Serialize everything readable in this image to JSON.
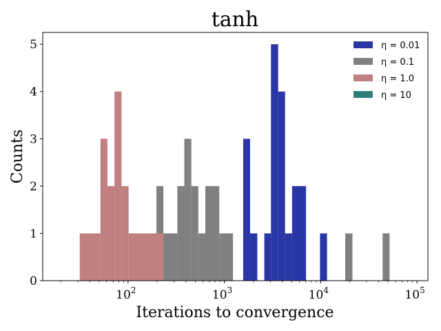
{
  "chart_data": {
    "type": "bar",
    "title": "tanh",
    "xlabel": "Iterations to convergence",
    "ylabel": "Counts",
    "xscale": "log",
    "xlim": [
      13,
      130000
    ],
    "ylim": [
      0,
      5.25
    ],
    "yticks": [
      0,
      1,
      2,
      3,
      4,
      5
    ],
    "xticks": [
      {
        "value": 100,
        "base": "10",
        "exp": "2"
      },
      {
        "value": 1000,
        "base": "10",
        "exp": "3"
      },
      {
        "value": 10000,
        "base": "10",
        "exp": "4"
      },
      {
        "value": 100000,
        "base": "10",
        "exp": "5"
      }
    ],
    "legend_position": "top-right",
    "series": [
      {
        "name": "η = 0.01",
        "color": "#2a35a6",
        "bins": [
          {
            "x0": 1570,
            "x1": 1850,
            "count": 3
          },
          {
            "x0": 1850,
            "x1": 2200,
            "count": 1
          },
          {
            "x0": 2600,
            "x1": 3050,
            "count": 1
          },
          {
            "x0": 3050,
            "x1": 3620,
            "count": 5
          },
          {
            "x0": 3620,
            "x1": 4270,
            "count": 4
          },
          {
            "x0": 4270,
            "x1": 5050,
            "count": 1
          },
          {
            "x0": 5050,
            "x1": 7050,
            "count": 2
          },
          {
            "x0": 9850,
            "x1": 11650,
            "count": 1
          }
        ]
      },
      {
        "name": "η = 0.1",
        "color": "#808080",
        "bins": [
          {
            "x0": 197,
            "x1": 233,
            "count": 2
          },
          {
            "x0": 233,
            "x1": 325,
            "count": 1
          },
          {
            "x0": 325,
            "x1": 384,
            "count": 2
          },
          {
            "x0": 384,
            "x1": 454,
            "count": 3
          },
          {
            "x0": 454,
            "x1": 537,
            "count": 2
          },
          {
            "x0": 537,
            "x1": 635,
            "count": 1
          },
          {
            "x0": 635,
            "x1": 886,
            "count": 2
          },
          {
            "x0": 886,
            "x1": 1230,
            "count": 1
          },
          {
            "x0": 18000,
            "x1": 21400,
            "count": 1
          },
          {
            "x0": 44000,
            "x1": 52000,
            "count": 1
          }
        ]
      },
      {
        "name": "η = 1.0",
        "color": "#c08080",
        "bins": [
          {
            "x0": 31.5,
            "x1": 43.7,
            "count": 1
          },
          {
            "x0": 43.7,
            "x1": 51.7,
            "count": 1
          },
          {
            "x0": 51.7,
            "x1": 61.1,
            "count": 3
          },
          {
            "x0": 61.1,
            "x1": 72.3,
            "count": 2
          },
          {
            "x0": 72.3,
            "x1": 85.6,
            "count": 4
          },
          {
            "x0": 85.6,
            "x1": 101.4,
            "count": 2
          },
          {
            "x0": 101.4,
            "x1": 232,
            "count": 1
          }
        ]
      },
      {
        "name": "η = 10",
        "color": "#2e7d7a",
        "bins": []
      }
    ]
  }
}
